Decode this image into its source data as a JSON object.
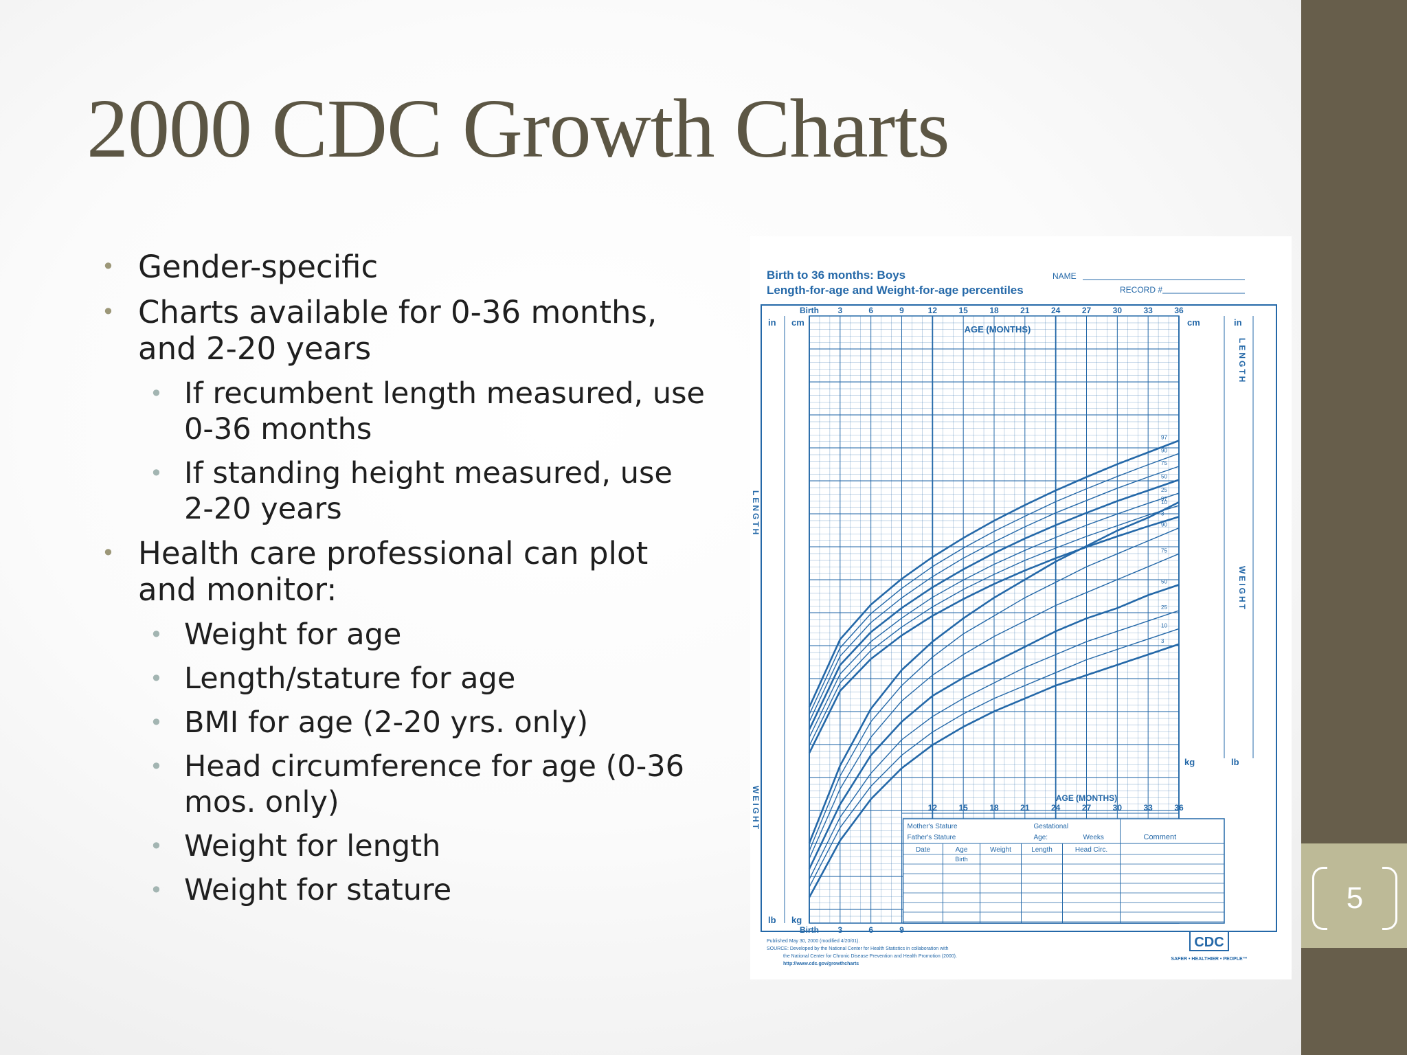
{
  "slide": {
    "title": "2000 CDC Growth Charts",
    "page_number": "5",
    "bullets": [
      {
        "level": 1,
        "text": "Gender-specific"
      },
      {
        "level": 1,
        "text": "Charts available for 0-36 months, and 2-20 years"
      },
      {
        "level": 2,
        "text": "If recumbent length measured, use 0-36 months"
      },
      {
        "level": 2,
        "text": "If standing height measured, use 2-20 years"
      },
      {
        "level": 1,
        "text": "Health care professional can plot and monitor:"
      },
      {
        "level": 2,
        "text": "Weight for age"
      },
      {
        "level": 2,
        "text": "Length/stature for age"
      },
      {
        "level": 2,
        "text": "BMI for age (2-20 yrs. only)"
      },
      {
        "level": 2,
        "text": "Head circumference for age (0-36 mos. only)"
      },
      {
        "level": 2,
        "text": "Weight for length"
      },
      {
        "level": 2,
        "text": "Weight for stature"
      }
    ],
    "accent_colors": {
      "title": "#5c5644",
      "side_bar": "#675e4b",
      "side_band": "#bdba97",
      "chart_ink": "#2468a8"
    }
  },
  "chart_image": {
    "title_line1": "Birth to 36 months: Boys",
    "title_line2": "Length-for-age and Weight-for-age percentiles",
    "name_label": "NAME",
    "record_label": "RECORD #",
    "top_axis_labels": [
      "Birth",
      "3",
      "6",
      "9",
      "12",
      "15",
      "18",
      "21",
      "24",
      "27",
      "30",
      "33",
      "36"
    ],
    "age_label": "AGE (MONTHS)",
    "unit_in": "in",
    "unit_cm": "cm",
    "unit_kg": "kg",
    "unit_lb": "lb",
    "length_word": "LENGTH",
    "weight_word": "WEIGHT",
    "bottom_axis_labels": [
      "Birth",
      "3",
      "6",
      "9"
    ],
    "inner_axis_labels": [
      "12",
      "15",
      "18",
      "21",
      "24",
      "27",
      "30",
      "33",
      "36"
    ],
    "table_labels": {
      "mothers_stature": "Mother's Stature",
      "fathers_stature": "Father's Stature",
      "gestational": "Gestational",
      "age": "Age:",
      "weeks": "Weeks",
      "comment": "Comment",
      "date": "Date",
      "age_col": "Age",
      "weight": "Weight",
      "length": "Length",
      "head_circ": "Head Circ.",
      "birth": "Birth"
    },
    "footer_lines": [
      "Published May 30, 2000 (modified 4/20/01).",
      "SOURCE: Developed by the National Center for Health Statistics in collaboration with",
      "the National Center for Chronic Disease Prevention and Health Promotion (2000).",
      "http://www.cdc.gov/growthcharts"
    ],
    "cdc_logo": "CDC",
    "cdc_slogan": "SAFER • HEALTHIER • PEOPLE™"
  },
  "chart_data": [
    {
      "type": "line",
      "title": "Length-for-age percentiles",
      "xlabel": "AGE (MONTHS)",
      "ylabel": "cm",
      "xlim": [
        0,
        36
      ],
      "ylim": [
        45,
        105
      ],
      "x": [
        0,
        3,
        6,
        9,
        12,
        15,
        18,
        21,
        24,
        27,
        30,
        33,
        36
      ],
      "series": [
        {
          "name": "3",
          "values": [
            45.7,
            56.8,
            62.5,
            66.7,
            70.2,
            73.2,
            75.9,
            78.3,
            80.5,
            82.5,
            84.4,
            86.2,
            87.9
          ]
        },
        {
          "name": "10",
          "values": [
            47.0,
            58.2,
            64.0,
            68.2,
            71.8,
            74.9,
            77.6,
            80.1,
            82.3,
            84.4,
            86.3,
            88.2,
            89.9
          ]
        },
        {
          "name": "25",
          "values": [
            48.5,
            59.8,
            65.6,
            69.8,
            73.5,
            76.6,
            79.4,
            81.9,
            84.2,
            86.4,
            88.4,
            90.3,
            92.1
          ]
        },
        {
          "name": "50",
          "values": [
            49.9,
            61.4,
            67.3,
            71.6,
            75.3,
            78.5,
            81.4,
            84.0,
            86.4,
            88.6,
            90.7,
            92.6,
            94.5
          ]
        },
        {
          "name": "75",
          "values": [
            51.3,
            63.0,
            69.0,
            73.4,
            77.2,
            80.5,
            83.4,
            86.1,
            88.6,
            90.8,
            93.0,
            95.0,
            96.9
          ]
        },
        {
          "name": "90",
          "values": [
            52.6,
            64.5,
            70.6,
            75.1,
            79.0,
            82.3,
            85.3,
            88.0,
            90.6,
            92.9,
            95.1,
            97.2,
            99.2
          ]
        },
        {
          "name": "97",
          "values": [
            53.9,
            66.0,
            72.2,
            76.8,
            80.7,
            84.1,
            87.2,
            90.0,
            92.6,
            95.0,
            97.3,
            99.4,
            101.5
          ]
        }
      ]
    },
    {
      "type": "line",
      "title": "Weight-for-age percentiles",
      "xlabel": "AGE (MONTHS)",
      "ylabel": "kg",
      "xlim": [
        0,
        36
      ],
      "ylim": [
        1.4,
        18
      ],
      "x": [
        0,
        3,
        6,
        9,
        12,
        15,
        18,
        21,
        24,
        27,
        30,
        33,
        36
      ],
      "series": [
        {
          "name": "3",
          "values": [
            2.4,
            4.6,
            6.2,
            7.4,
            8.3,
            9.0,
            9.6,
            10.1,
            10.6,
            11.0,
            11.4,
            11.8,
            12.2
          ]
        },
        {
          "name": "10",
          "values": [
            2.8,
            5.1,
            6.7,
            7.9,
            8.8,
            9.5,
            10.1,
            10.6,
            11.1,
            11.6,
            12.0,
            12.4,
            12.8
          ]
        },
        {
          "name": "25",
          "values": [
            3.1,
            5.5,
            7.2,
            8.5,
            9.4,
            10.1,
            10.7,
            11.3,
            11.8,
            12.3,
            12.7,
            13.1,
            13.5
          ]
        },
        {
          "name": "50",
          "values": [
            3.5,
            6.0,
            7.9,
            9.2,
            10.2,
            10.9,
            11.5,
            12.1,
            12.7,
            13.2,
            13.6,
            14.1,
            14.5
          ]
        },
        {
          "name": "75",
          "values": [
            3.9,
            6.6,
            8.6,
            10.0,
            11.0,
            11.8,
            12.5,
            13.1,
            13.7,
            14.2,
            14.7,
            15.2,
            15.7
          ]
        },
        {
          "name": "90",
          "values": [
            4.2,
            7.1,
            9.2,
            10.6,
            11.7,
            12.6,
            13.3,
            14.0,
            14.6,
            15.2,
            15.7,
            16.2,
            16.7
          ]
        },
        {
          "name": "97",
          "values": [
            4.5,
            7.5,
            9.7,
            11.2,
            12.3,
            13.2,
            14.0,
            14.7,
            15.4,
            16.0,
            16.6,
            17.1,
            17.7
          ]
        }
      ]
    }
  ]
}
